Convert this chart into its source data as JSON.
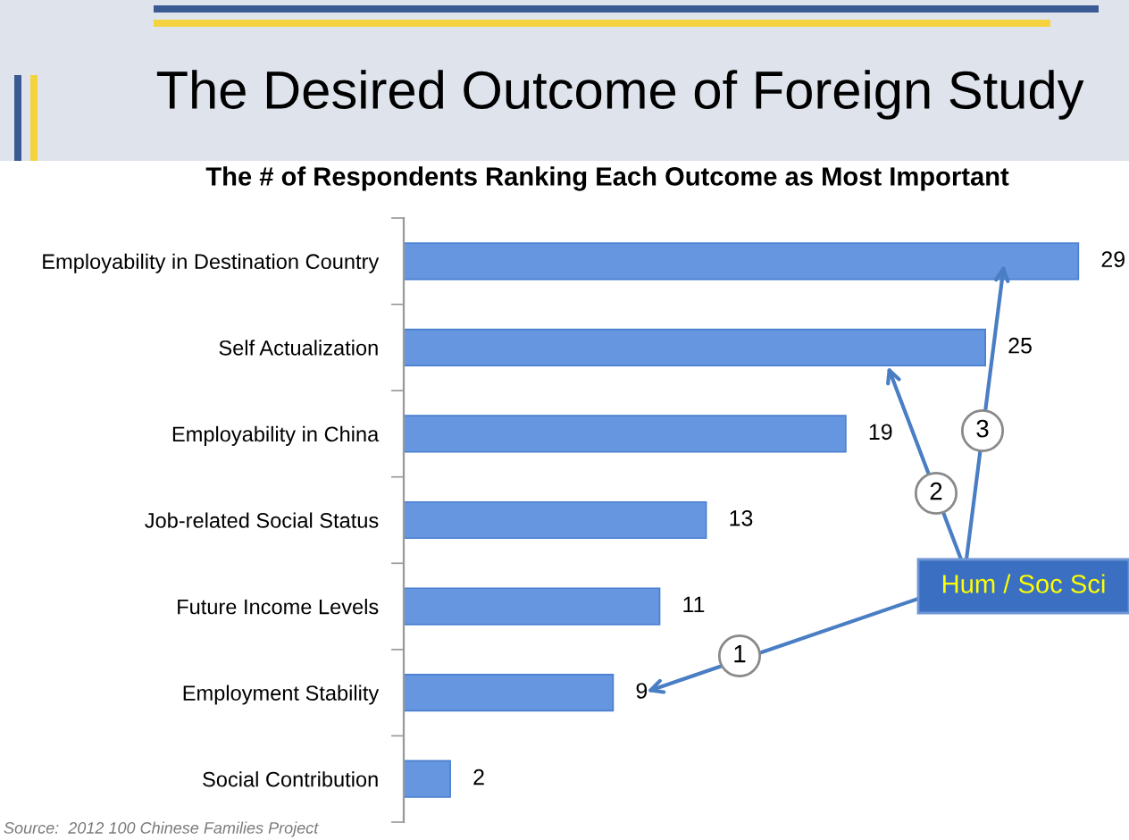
{
  "chart_data": {
    "type": "bar",
    "orientation": "horizontal",
    "title": "The Desired Outcome of Foreign Study",
    "subtitle": "The # of Respondents Ranking Each Outcome as Most Important",
    "categories": [
      "Employability in Destination Country",
      "Self Actualization",
      "Employability in China",
      "Job-related Social Status",
      "Future Income Levels",
      "Employment Stability",
      "Social Contribution"
    ],
    "values": [
      29,
      25,
      19,
      13,
      11,
      9,
      2
    ],
    "color": "#6796e0",
    "data_labels": true,
    "annotations": [
      "Hum / Soc Sci",
      "1",
      "2",
      "3",
      "Source:  2012 100 Chinese Families Project"
    ]
  }
}
